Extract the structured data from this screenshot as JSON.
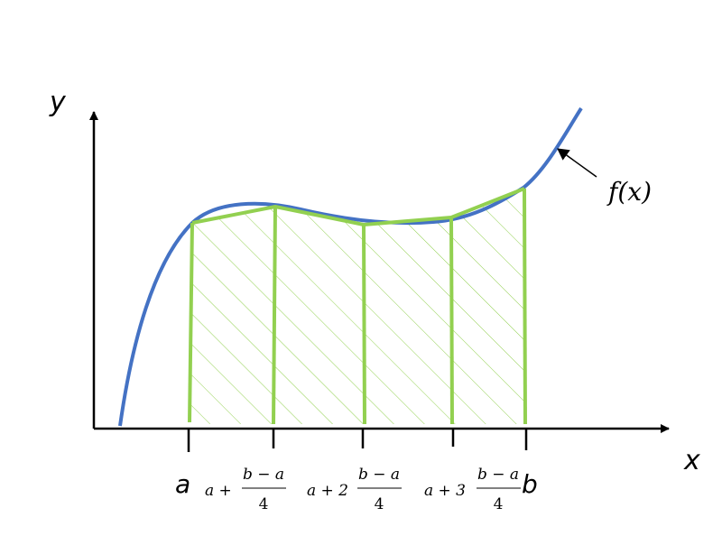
{
  "axes": {
    "y_label": "y",
    "x_label": "x"
  },
  "curve": {
    "label": "f(x)",
    "color": "#4472C4"
  },
  "trapezoids": {
    "color": "#92D050",
    "count": 4
  },
  "ticks": {
    "a": "a",
    "b": "b",
    "t1": {
      "lead": "a +",
      "num": "b − a",
      "den": "4"
    },
    "t2": {
      "lead": "a + 2",
      "num": "b − a",
      "den": "4"
    },
    "t3": {
      "lead": "a + 3",
      "num": "b − a",
      "den": "4"
    }
  }
}
